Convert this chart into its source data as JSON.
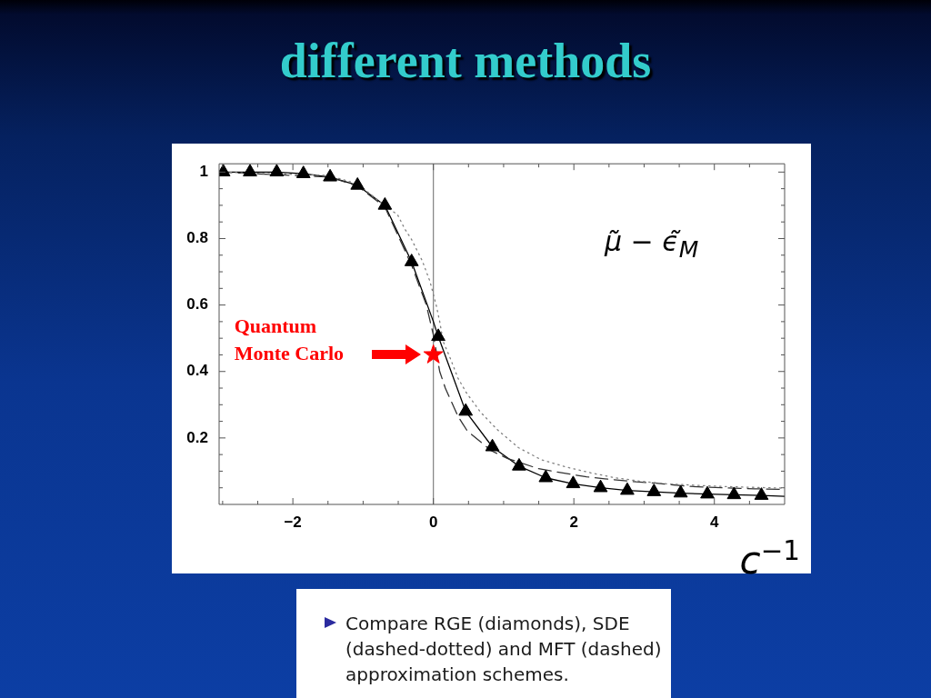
{
  "chart_data": {
    "type": "line",
    "title": "different methods",
    "xlabel": "c$^{−1}$",
    "ylabel": "μ̃ − ϵ̃$_{M}$",
    "xlim": [
      -3.05,
      5.0
    ],
    "ylim": [
      0,
      1.025
    ],
    "xticks": [
      {
        "value": -3,
        "label": null
      },
      {
        "value": -2.5,
        "label": null
      },
      {
        "value": -2,
        "label": "−2"
      },
      {
        "value": -1.5,
        "label": null
      },
      {
        "value": -1,
        "label": null
      },
      {
        "value": -0.5,
        "label": null
      },
      0,
      {
        "value": 0.5,
        "label": null
      },
      {
        "value": 1,
        "label": null
      },
      {
        "value": 1.5,
        "label": null
      },
      2,
      {
        "value": 2.5,
        "label": null
      },
      {
        "value": 3,
        "label": null
      },
      {
        "value": 3.5,
        "label": null
      },
      4,
      {
        "value": 4.5,
        "label": null
      }
    ],
    "yticks": [
      {
        "value": 0.05,
        "label": null
      },
      {
        "value": 0.1,
        "label": null
      },
      {
        "value": 0.15,
        "label": null
      },
      0.2,
      {
        "value": 0.25,
        "label": null
      },
      {
        "value": 0.3,
        "label": null
      },
      {
        "value": 0.35,
        "label": null
      },
      0.4,
      {
        "value": 0.45,
        "label": null
      },
      {
        "value": 0.5,
        "label": null
      },
      {
        "value": 0.55,
        "label": null
      },
      0.6,
      {
        "value": 0.65,
        "label": null
      },
      {
        "value": 0.7,
        "label": null
      },
      {
        "value": 0.75,
        "label": null
      },
      0.8,
      {
        "value": 0.85,
        "label": null
      },
      {
        "value": 0.9,
        "label": null
      },
      {
        "value": 0.95,
        "label": null
      },
      1
    ],
    "ref_lines": [
      {
        "axis": "x",
        "value": 0,
        "color": "#808080"
      }
    ],
    "series": [
      {
        "color": "#000000",
        "line_style": "solid",
        "marker": "none",
        "x": [
          -3.05,
          -2.99,
          -2.61,
          -2.23,
          -1.85,
          -1.47,
          -1.08,
          -0.69,
          -0.31,
          0,
          0.07,
          0.46,
          0.84,
          1.22,
          1.6,
          1.99,
          2.38,
          2.76,
          3.14,
          3.52,
          3.9,
          4.28,
          4.67,
          5.0
        ],
        "values": [
          1.0,
          1.0,
          1.0,
          1.0,
          0.995,
          0.985,
          0.96,
          0.9,
          0.73,
          0.55,
          0.505,
          0.28,
          0.173,
          0.115,
          0.08,
          0.062,
          0.05,
          0.042,
          0.038,
          0.034,
          0.031,
          0.029,
          0.027,
          0.024
        ]
      },
      {
        "color": "#333333",
        "line_style": "dashed",
        "marker": "none",
        "x": [
          -3.05,
          -1.47,
          -1.08,
          -0.69,
          -0.31,
          -0.1,
          0,
          0.09,
          0.17,
          0.35,
          0.48,
          0.82,
          1.06,
          1.49,
          1.75,
          2.18,
          2.44,
          2.89,
          3.17,
          3.6,
          3.86,
          4.27,
          4.57,
          5.0
        ],
        "values": [
          1.0,
          0.985,
          0.958,
          0.895,
          0.72,
          0.6,
          0.51,
          0.4,
          0.35,
          0.265,
          0.222,
          0.162,
          0.138,
          0.108,
          0.098,
          0.083,
          0.077,
          0.068,
          0.064,
          0.055,
          0.052,
          0.049,
          0.047,
          0.045
        ]
      },
      {
        "color": "#808080",
        "line_style": "dotted",
        "marker": "none",
        "x": [
          -3.05,
          -1.5,
          -1.08,
          -0.7,
          -0.51,
          -0.41,
          -0.31,
          -0.16,
          -0.05,
          0.04,
          0.09,
          0.14,
          0.24,
          0.35,
          0.47,
          0.67,
          0.91,
          1.21,
          1.53,
          1.88,
          2.24,
          2.59,
          2.98,
          3.32,
          3.88,
          4.27,
          4.79,
          5.0
        ],
        "values": [
          1.0,
          0.99,
          0.965,
          0.9,
          0.872,
          0.83,
          0.797,
          0.734,
          0.672,
          0.6,
          0.55,
          0.49,
          0.44,
          0.38,
          0.336,
          0.278,
          0.225,
          0.171,
          0.135,
          0.113,
          0.095,
          0.08,
          0.069,
          0.062,
          0.056,
          0.053,
          0.05,
          0.049
        ]
      },
      {
        "type": "scatter",
        "color": "#000000",
        "marker": "triangle",
        "x": [
          -2.99,
          -2.61,
          -2.23,
          -1.85,
          -1.47,
          -1.08,
          -0.69,
          -0.31,
          0.07,
          0.46,
          0.84,
          1.22,
          1.6,
          1.99,
          2.38,
          2.76,
          3.14,
          3.52,
          3.9,
          4.28,
          4.67
        ],
        "values": [
          1.0,
          1.0,
          1.0,
          0.995,
          0.985,
          0.96,
          0.9,
          0.73,
          0.505,
          0.28,
          0.173,
          0.115,
          0.08,
          0.062,
          0.05,
          0.042,
          0.038,
          0.034,
          0.031,
          0.029,
          0.027
        ]
      },
      {
        "type": "scatter",
        "name": "Quantum Monte Carlo",
        "color": "#ff0000",
        "marker": "star",
        "x": [
          0
        ],
        "values": [
          0.45
        ]
      }
    ],
    "annotations": [
      "Compare RGE (diamonds), SDE (dashed-dotted) and MFT (dashed) approximation schemes."
    ]
  }
}
